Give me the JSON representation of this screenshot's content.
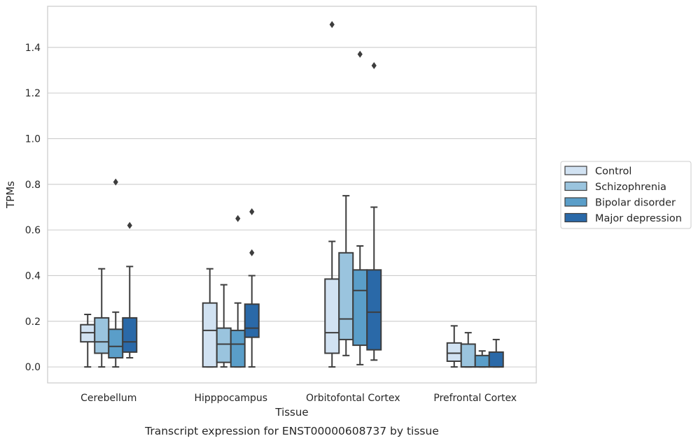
{
  "chart_data": {
    "type": "boxplot",
    "xlabel": "Tissue",
    "ylabel": "TPMs",
    "caption": "Transcript expression for ENST00000608737 by tissue",
    "ylim": [
      -0.07,
      1.58
    ],
    "yticks": [
      "0.0",
      "0.2",
      "0.4",
      "0.6",
      "0.8",
      "1.0",
      "1.2",
      "1.4"
    ],
    "grid": true,
    "legend_position": "right",
    "categories": [
      "Cerebellum",
      "Hipppocampus",
      "Orbitofontal Cortex",
      "Prefrontal Cortex"
    ],
    "series": [
      {
        "name": "Control",
        "color": "#d1e2f2",
        "boxes": [
          {
            "whislo": 0.0,
            "q1": 0.11,
            "med": 0.15,
            "q3": 0.185,
            "whishi": 0.23,
            "fliers": []
          },
          {
            "whislo": 0.0,
            "q1": 0.0,
            "med": 0.16,
            "q3": 0.28,
            "whishi": 0.43,
            "fliers": []
          },
          {
            "whislo": 0.0,
            "q1": 0.06,
            "med": 0.15,
            "q3": 0.385,
            "whishi": 0.55,
            "fliers": [
              1.5
            ]
          },
          {
            "whislo": 0.0,
            "q1": 0.025,
            "med": 0.06,
            "q3": 0.105,
            "whishi": 0.18,
            "fliers": []
          }
        ]
      },
      {
        "name": "Schizophrenia",
        "color": "#9ac4de",
        "boxes": [
          {
            "whislo": 0.0,
            "q1": 0.06,
            "med": 0.11,
            "q3": 0.215,
            "whishi": 0.43,
            "fliers": []
          },
          {
            "whislo": 0.0,
            "q1": 0.02,
            "med": 0.1,
            "q3": 0.17,
            "whishi": 0.36,
            "fliers": []
          },
          {
            "whislo": 0.05,
            "q1": 0.12,
            "med": 0.21,
            "q3": 0.5,
            "whishi": 0.75,
            "fliers": []
          },
          {
            "whislo": 0.0,
            "q1": 0.0,
            "med": 0.0,
            "q3": 0.1,
            "whishi": 0.15,
            "fliers": []
          }
        ]
      },
      {
        "name": "Bipolar disorder",
        "color": "#5a9ec9",
        "boxes": [
          {
            "whislo": 0.0,
            "q1": 0.04,
            "med": 0.09,
            "q3": 0.165,
            "whishi": 0.24,
            "fliers": [
              0.81
            ]
          },
          {
            "whislo": 0.0,
            "q1": 0.0,
            "med": 0.1,
            "q3": 0.16,
            "whishi": 0.28,
            "fliers": [
              0.65
            ]
          },
          {
            "whislo": 0.01,
            "q1": 0.095,
            "med": 0.335,
            "q3": 0.425,
            "whishi": 0.53,
            "fliers": [
              1.37
            ]
          },
          {
            "whislo": 0.0,
            "q1": 0.0,
            "med": 0.0,
            "q3": 0.05,
            "whishi": 0.07,
            "fliers": []
          }
        ]
      },
      {
        "name": "Major depression",
        "color": "#2a69a8",
        "boxes": [
          {
            "whislo": 0.04,
            "q1": 0.065,
            "med": 0.11,
            "q3": 0.215,
            "whishi": 0.44,
            "fliers": [
              0.62
            ]
          },
          {
            "whislo": 0.0,
            "q1": 0.13,
            "med": 0.17,
            "q3": 0.275,
            "whishi": 0.4,
            "fliers": [
              0.5,
              0.68
            ]
          },
          {
            "whislo": 0.03,
            "q1": 0.075,
            "med": 0.24,
            "q3": 0.425,
            "whishi": 0.7,
            "fliers": [
              1.32
            ]
          },
          {
            "whislo": 0.0,
            "q1": 0.0,
            "med": 0.0,
            "q3": 0.065,
            "whishi": 0.12,
            "fliers": []
          }
        ]
      }
    ]
  }
}
